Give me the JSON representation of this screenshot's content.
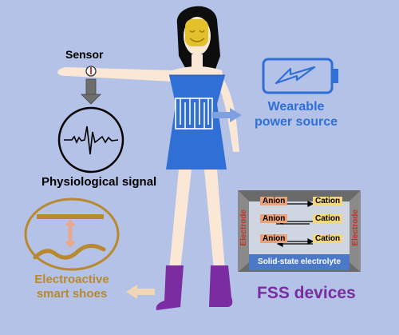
{
  "labels": {
    "sensor": "Sensor",
    "physiological_signal": "Physiological signal",
    "wearable_line1": "Wearable",
    "wearable_line2": "power source",
    "shoes_line1": "Electroactive",
    "shoes_line2": "smart shoes",
    "fss_devices": "FSS devices"
  },
  "battery_cell": {
    "electrode_left": "Electrode",
    "electrode_right": "Electrode",
    "electrolyte": "Solid-state electrolyte",
    "rows": [
      {
        "anion": "Anion",
        "cation": "Cation"
      },
      {
        "anion": "Anion",
        "cation": "Cation"
      },
      {
        "anion": "Anion",
        "cation": "Cation"
      }
    ]
  },
  "colors": {
    "background": "#b3c2e6",
    "dress": "#2f6fd6",
    "skin": "#fbe7d6",
    "hair": "#0d0d0d",
    "face_mask": "#e2c22c",
    "gold": "#b8892f",
    "purple": "#7a2ca0",
    "wearable_blue": "#2f6fd6",
    "electrode_red": "#c2342a"
  },
  "icons": [
    "battery-lightning-icon",
    "heartbeat-signal-icon",
    "sensor-band-icon",
    "electroactive-material-icon"
  ]
}
